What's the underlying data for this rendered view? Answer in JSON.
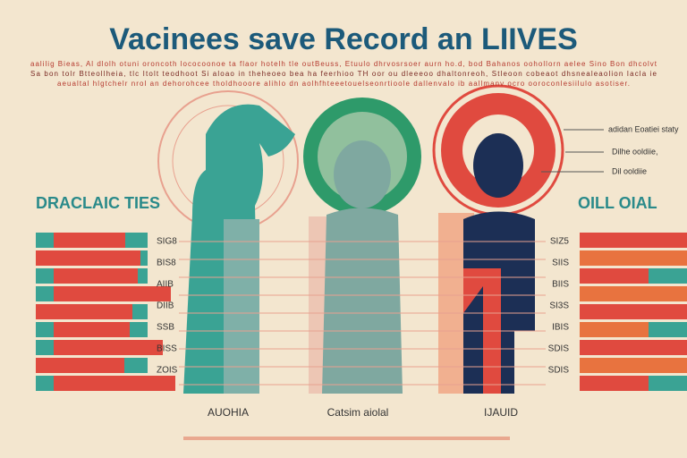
{
  "header": {
    "title": "Vacinees save Record an LIIVES",
    "subtitle_lines": [
      "aalilig Bieas, Al dlolh otuni oroncoth lococoonoe ta flaor hotelh tle outBeuss, Etuulo dhrvosrsoer aurn ho.d, bod Bahanos oohollorn aelee Sino Bon dhcolvt",
      "Sa bon tolr Btteollheia, tlc Itolt teodhoot Si aloao in theheoeo bea ha feerhioo TH oor ou dleeeoo dhaltonreoh, Stleoon cobeaot dhsnealeaolion Iacla ie",
      "aeualtal hlgtchelr nrol an dehorohcee tholdhooore alihlo dn aolhfhteeetouelseonrtioole dallenvalo ib aallmanv ocro ooroconlesiilulo asotiser."
    ]
  },
  "left_panel": {
    "heading": "DRACLAIC TIES",
    "labels": [
      "SIG8",
      "BIS8",
      "AIIB",
      "DIIB",
      "SSB",
      "BISS",
      "ZOIS"
    ]
  },
  "right_panel": {
    "heading": "OILL OIAL",
    "labels": [
      "SIZ5",
      "SIIS",
      "BIIS",
      "SI3S",
      "IBIS",
      "SDIS",
      "SDIS"
    ]
  },
  "callouts": [
    "adidan Eoatiei staty",
    "Dilhe ooldiie,",
    "Dil ooldiie"
  ],
  "figure_labels": [
    "AUOHIA",
    "Catsim aiolal",
    "IJAUID"
  ]
}
